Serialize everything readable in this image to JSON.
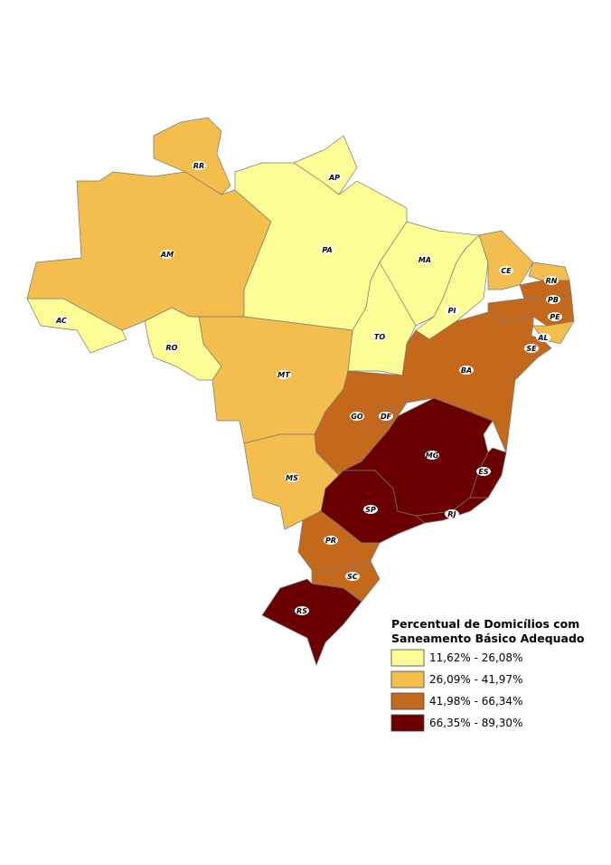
{
  "map": {
    "states": [
      {
        "label": "AC",
        "color": "#fdfd96"
      },
      {
        "label": "AM",
        "color": "#f4be4f"
      },
      {
        "label": "RR",
        "color": "#f4be4f"
      },
      {
        "label": "AP",
        "color": "#fdfd96"
      },
      {
        "label": "PA",
        "color": "#fdfd96"
      },
      {
        "label": "MA",
        "color": "#fdfd96"
      },
      {
        "label": "PI",
        "color": "#fdfd96"
      },
      {
        "label": "CE",
        "color": "#f4be4f"
      },
      {
        "label": "RN",
        "color": "#f4be4f"
      },
      {
        "label": "PB",
        "color": "#c4681c"
      },
      {
        "label": "PE",
        "color": "#c4681c"
      },
      {
        "label": "AL",
        "color": "#f4be4f"
      },
      {
        "label": "SE",
        "color": "#c4681c"
      },
      {
        "label": "BA",
        "color": "#c4681c"
      },
      {
        "label": "TO",
        "color": "#fdfd96"
      },
      {
        "label": "MT",
        "color": "#f4be4f"
      },
      {
        "label": "RO",
        "color": "#fdfd96"
      },
      {
        "label": "MS",
        "color": "#f4be4f"
      },
      {
        "label": "GO",
        "color": "#c4681c"
      },
      {
        "label": "DF",
        "color": "#c4681c"
      },
      {
        "label": "MG",
        "color": "#6b0000"
      },
      {
        "label": "ES",
        "color": "#6b0000"
      },
      {
        "label": "RJ",
        "color": "#6b0000"
      },
      {
        "label": "SP",
        "color": "#6b0000"
      },
      {
        "label": "PR",
        "color": "#c4681c"
      },
      {
        "label": "SC",
        "color": "#c4681c"
      },
      {
        "label": "RS",
        "color": "#6b0000"
      }
    ]
  },
  "legend": {
    "title": [
      "Percentual de Domicílios com",
      "Saneamento Básico Adequado"
    ],
    "items": [
      {
        "label": "11,62% - 26,08%",
        "color": "#fdfd96"
      },
      {
        "label": "26,09% - 41,97%",
        "color": "#f4be4f"
      },
      {
        "label": "41,98% - 66,34%",
        "color": "#c4681c"
      },
      {
        "label": "66,35% - 89,30%",
        "color": "#6b0000"
      }
    ]
  }
}
